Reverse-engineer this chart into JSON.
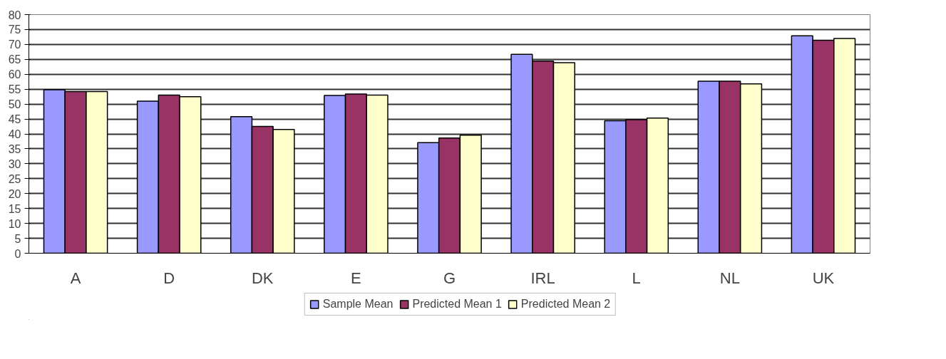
{
  "chart_data": {
    "type": "bar",
    "categories": [
      "A",
      "D",
      "DK",
      "E",
      "G",
      "IRL",
      "L",
      "NL",
      "UK"
    ],
    "series": [
      {
        "name": "Sample Mean",
        "color": "#9999ff",
        "values": [
          54.8,
          51.0,
          45.8,
          52.9,
          37.1,
          66.7,
          44.4,
          57.7,
          72.9
        ]
      },
      {
        "name": "Predicted Mean 1",
        "color": "#993366",
        "values": [
          54.2,
          53.0,
          42.5,
          53.4,
          38.6,
          64.4,
          44.8,
          57.7,
          71.4
        ]
      },
      {
        "name": "Predicted Mean 2",
        "color": "#ffffcc",
        "values": [
          54.2,
          52.5,
          41.5,
          53.0,
          39.6,
          63.9,
          45.3,
          56.8,
          72.0
        ]
      }
    ],
    "ylim": [
      0,
      80
    ],
    "yticks": [
      0,
      5,
      10,
      15,
      20,
      25,
      30,
      35,
      40,
      45,
      50,
      55,
      60,
      65,
      70,
      75,
      80
    ],
    "grid": "y",
    "legend": "bottom"
  }
}
